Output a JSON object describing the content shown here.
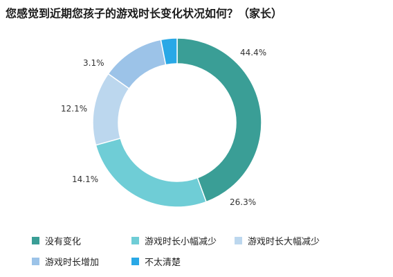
{
  "chart_data": {
    "type": "pie",
    "title": "您感觉到近期您孩子的游戏时长变化状况如何？（家长）",
    "donut": true,
    "categories": [
      "没有变化",
      "游戏时长小幅减少",
      "游戏时长大幅减少",
      "游戏时长增加",
      "不太清楚"
    ],
    "values": [
      44.4,
      26.3,
      14.1,
      12.1,
      3.1
    ],
    "labels": [
      "44.4%",
      "26.3%",
      "14.1%",
      "12.1%",
      "3.1%"
    ],
    "colors": [
      "#3a9e96",
      "#6fcdd6",
      "#bcd7ee",
      "#9cc3e8",
      "#29a8e6"
    ],
    "legend_position": "bottom"
  }
}
